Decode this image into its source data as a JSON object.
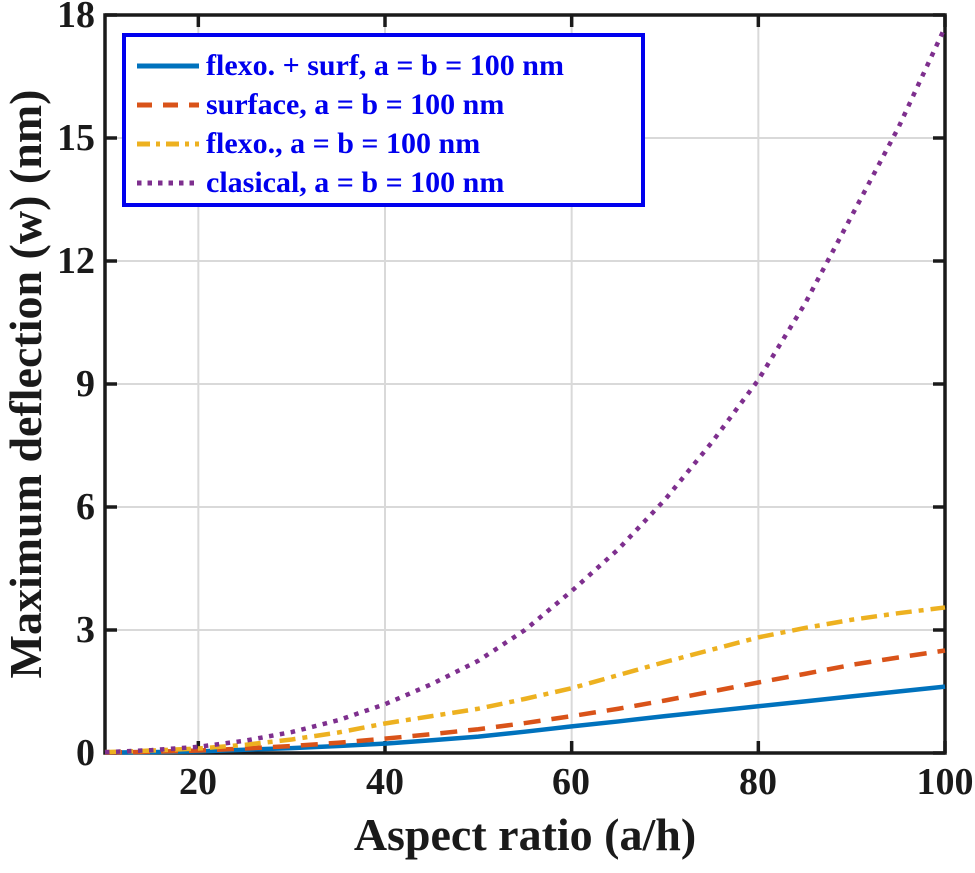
{
  "chart_data": {
    "type": "line",
    "title": "",
    "xlabel": "Aspect ratio (a/h)",
    "ylabel": "Maximum deflection (w) (nm)",
    "xlim": [
      10,
      100
    ],
    "ylim": [
      0,
      18
    ],
    "x_ticks": [
      20,
      40,
      60,
      80,
      100
    ],
    "x_tick_labels": [
      "20",
      "40",
      "60",
      "80",
      "100"
    ],
    "y_ticks": [
      0,
      3,
      6,
      9,
      12,
      15,
      18
    ],
    "y_tick_labels": [
      "0",
      "3",
      "6",
      "9",
      "12",
      "15",
      "18"
    ],
    "grid": true,
    "legend_position": "top-left",
    "x": [
      10,
      15,
      20,
      25,
      30,
      35,
      40,
      45,
      50,
      55,
      60,
      65,
      70,
      75,
      80,
      85,
      90,
      95,
      100
    ],
    "series": [
      {
        "name": "flexo-plus-surface",
        "label": "flexo. + surf, a = b = 100 nm",
        "color": "#0072BD",
        "line_style": "solid",
        "values": [
          0.01,
          0.02,
          0.04,
          0.08,
          0.12,
          0.17,
          0.23,
          0.31,
          0.4,
          0.52,
          0.65,
          0.77,
          0.9,
          1.02,
          1.14,
          1.26,
          1.38,
          1.5,
          1.62
        ]
      },
      {
        "name": "surface",
        "label": "surface, a = b = 100 nm",
        "color": "#D95319",
        "line_style": "dashed",
        "values": [
          0.01,
          0.03,
          0.06,
          0.11,
          0.17,
          0.25,
          0.35,
          0.46,
          0.58,
          0.73,
          0.9,
          1.08,
          1.28,
          1.5,
          1.72,
          1.93,
          2.15,
          2.33,
          2.5
        ]
      },
      {
        "name": "flexo",
        "label": "flexo., a = b = 100 nm",
        "color": "#EDB120",
        "line_style": "dashdot",
        "values": [
          0.02,
          0.06,
          0.11,
          0.2,
          0.33,
          0.5,
          0.72,
          0.9,
          1.08,
          1.32,
          1.58,
          1.9,
          2.22,
          2.52,
          2.82,
          3.05,
          3.25,
          3.41,
          3.55
        ]
      },
      {
        "name": "classical",
        "label": "clasical, a = b = 100 nm",
        "color": "#7E2F8E",
        "line_style": "dotted",
        "values": [
          0.02,
          0.07,
          0.15,
          0.3,
          0.51,
          0.8,
          1.19,
          1.68,
          2.25,
          3.0,
          3.95,
          4.97,
          6.18,
          7.57,
          9.1,
          10.96,
          13.1,
          15.25,
          17.7
        ]
      }
    ],
    "style": {
      "axis_color": "#1a1a1a",
      "grid_color": "#d9d9d9",
      "legend_border_color": "#0000ee",
      "legend_text_color": "#0000ee",
      "background": "#ffffff"
    }
  }
}
